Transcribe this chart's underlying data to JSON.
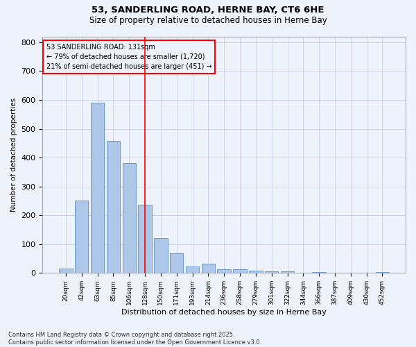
{
  "title1": "53, SANDERLING ROAD, HERNE BAY, CT6 6HE",
  "title2": "Size of property relative to detached houses in Herne Bay",
  "xlabel": "Distribution of detached houses by size in Herne Bay",
  "ylabel": "Number of detached properties",
  "categories": [
    "20sqm",
    "42sqm",
    "63sqm",
    "85sqm",
    "106sqm",
    "128sqm",
    "150sqm",
    "171sqm",
    "193sqm",
    "214sqm",
    "236sqm",
    "258sqm",
    "279sqm",
    "301sqm",
    "322sqm",
    "344sqm",
    "366sqm",
    "387sqm",
    "409sqm",
    "430sqm",
    "452sqm"
  ],
  "values": [
    15,
    250,
    590,
    458,
    380,
    237,
    122,
    68,
    22,
    31,
    12,
    12,
    8,
    5,
    5,
    0,
    4,
    0,
    0,
    0,
    3
  ],
  "bar_color": "#aec6e8",
  "bar_edge_color": "#5a8fc2",
  "vline_x_index": 5,
  "vline_color": "red",
  "annotation_text": "53 SANDERLING ROAD: 131sqm\n← 79% of detached houses are smaller (1,720)\n21% of semi-detached houses are larger (451) →",
  "box_color": "red",
  "ylim": [
    0,
    820
  ],
  "yticks": [
    0,
    100,
    200,
    300,
    400,
    500,
    600,
    700,
    800
  ],
  "footnote": "Contains HM Land Registry data © Crown copyright and database right 2025.\nContains public sector information licensed under the Open Government Licence v3.0.",
  "bg_color": "#eef2fb",
  "grid_color": "#c8d0e8"
}
